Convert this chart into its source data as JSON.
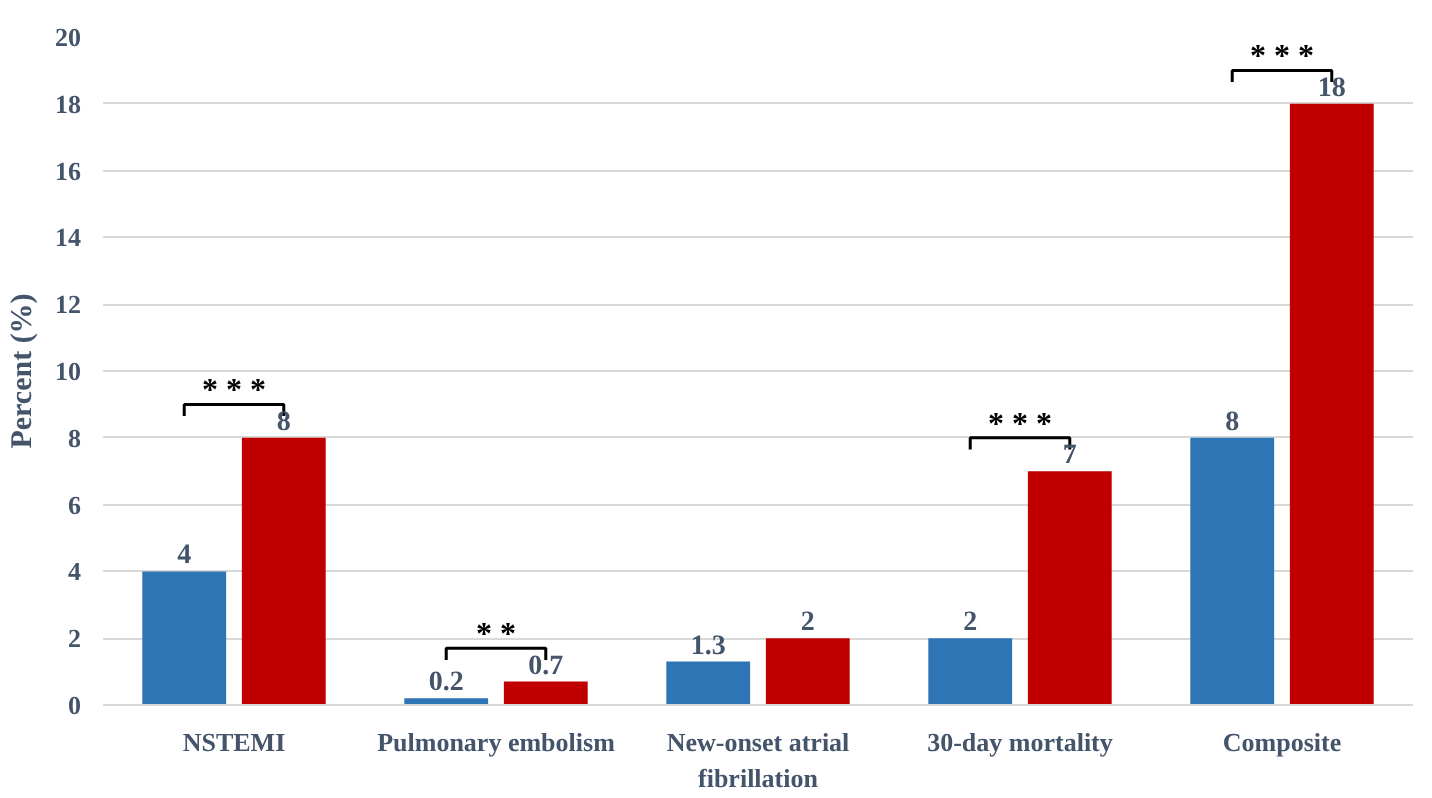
{
  "chart_data": {
    "type": "bar",
    "ylabel": "Percent (%)",
    "categories": [
      "NSTEMI",
      "Pulmonary embolism",
      "New-onset atrial\nfibrillation",
      "30-day mortality",
      "Composite"
    ],
    "series": [
      {
        "color": "#2e75b6",
        "values": [
          4,
          0.2,
          1.3,
          2,
          8
        ]
      },
      {
        "color": "#c00000",
        "values": [
          8,
          0.7,
          2,
          7,
          18
        ]
      }
    ],
    "ylim": [
      0,
      20
    ],
    "yticks": [
      0,
      2,
      4,
      6,
      8,
      10,
      12,
      14,
      16,
      18,
      20
    ],
    "grid": "y",
    "data_labels": true,
    "annotations": [
      "* * *",
      "* *",
      "* * *",
      "* * *"
    ]
  }
}
